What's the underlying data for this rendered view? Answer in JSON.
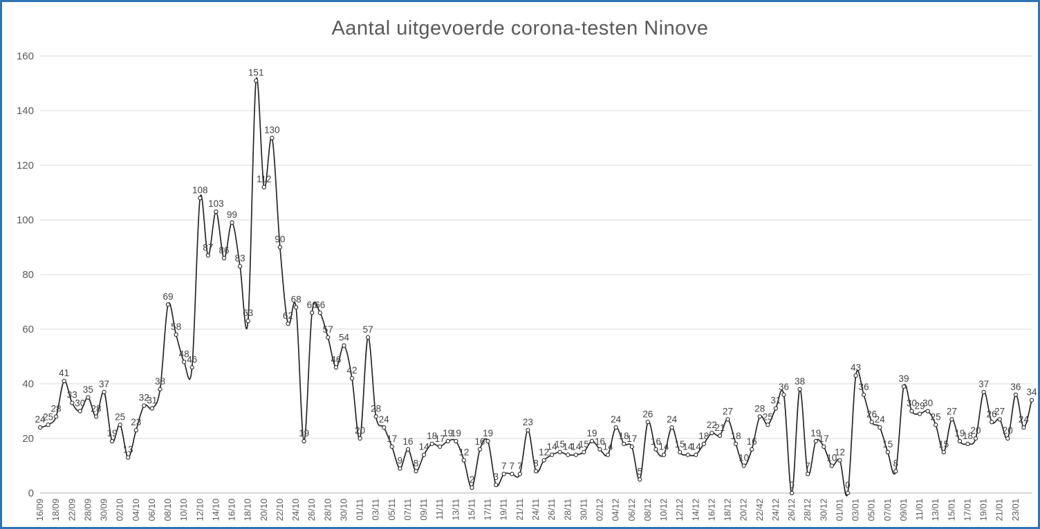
{
  "window": {
    "border_color": "#2E75B6",
    "background": "#FFFFFF"
  },
  "chart_data": {
    "type": "line",
    "title": "Aantal uitgevoerde corona-testen Ninove",
    "values": [
      24,
      25,
      28,
      41,
      33,
      30,
      35,
      28,
      37,
      19,
      25,
      13,
      23,
      32,
      31,
      38,
      69,
      58,
      48,
      46,
      108,
      87,
      103,
      86,
      99,
      83,
      63,
      151,
      112,
      130,
      90,
      62,
      68,
      19,
      66,
      66,
      57,
      46,
      54,
      42,
      20,
      57,
      28,
      24,
      17,
      9,
      16,
      8,
      14,
      18,
      17,
      19,
      19,
      12,
      2,
      16,
      19,
      3,
      7,
      7,
      7,
      23,
      8,
      12,
      14,
      15,
      14,
      14,
      15,
      19,
      16,
      14,
      24,
      18,
      17,
      5,
      26,
      16,
      14,
      24,
      15,
      14,
      14,
      18,
      22,
      21,
      27,
      18,
      10,
      16,
      28,
      25,
      31,
      36,
      0,
      38,
      7,
      19,
      17,
      10,
      12,
      0,
      43,
      36,
      26,
      24,
      15,
      8,
      39,
      30,
      29,
      30,
      25,
      15,
      27,
      19,
      18,
      20,
      37,
      26,
      27,
      20,
      36,
      24,
      34
    ],
    "x_tick_labels": [
      "16/09",
      "18/09",
      "22/09",
      "28/09",
      "30/09",
      "02/10",
      "04/10",
      "06/10",
      "08/10",
      "10/10",
      "12/10",
      "14/10",
      "16/10",
      "18/10",
      "20/10",
      "22/10",
      "24/10",
      "26/10",
      "28/10",
      "30/10",
      "01/11",
      "03/11",
      "05/11",
      "07/11",
      "09/11",
      "11/11",
      "13/11",
      "15/11",
      "17/11",
      "19/11",
      "21/11",
      "24/11",
      "26/11",
      "28/11",
      "30/11",
      "02/12",
      "04/12",
      "06/12",
      "08/12",
      "10/12",
      "12/12",
      "14/12",
      "16/12",
      "18/12",
      "20/12",
      "22/42",
      "24/12",
      "26/12",
      "28/12",
      "30/12",
      "01/01",
      "03/01",
      "05/01",
      "07/01",
      "09/01",
      "11/01",
      "13/01",
      "15/01",
      "17/01",
      "19/01",
      "21/01",
      "23/01"
    ],
    "yticks": [
      0,
      20,
      40,
      60,
      80,
      100,
      120,
      140,
      160
    ],
    "ylim": [
      0,
      160
    ],
    "grid": "horizontal",
    "legend": "none",
    "data_label_position": "above",
    "colors": {
      "line": "#262626",
      "marker_fill": "#FFFFFF",
      "data_label": "#404040",
      "axis_text": "#595959",
      "gridline": "#D9D9D9",
      "axis_line": "#BFBFBF",
      "title": "#595959"
    }
  }
}
